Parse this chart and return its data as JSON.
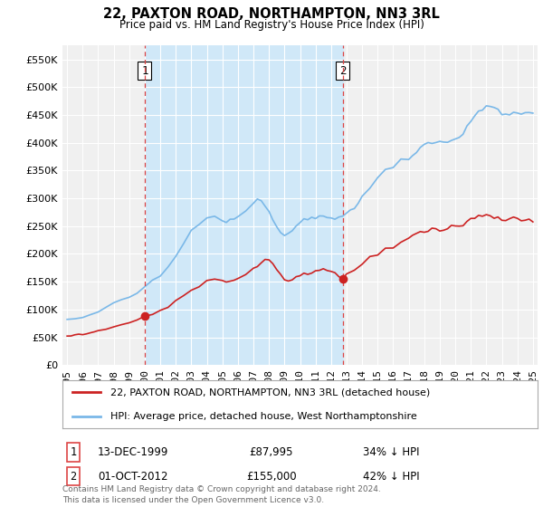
{
  "title": "22, PAXTON ROAD, NORTHAMPTON, NN3 3RL",
  "subtitle": "Price paid vs. HM Land Registry's House Price Index (HPI)",
  "legend_line1": "22, PAXTON ROAD, NORTHAMPTON, NN3 3RL (detached house)",
  "legend_line2": "HPI: Average price, detached house, West Northamptonshire",
  "purchase1_date_label": "13-DEC-1999",
  "purchase1_price": 87995,
  "purchase1_price_label": "£87,995",
  "purchase1_hpi_label": "34% ↓ HPI",
  "purchase2_date_label": "01-OCT-2012",
  "purchase2_price": 155000,
  "purchase2_price_label": "£155,000",
  "purchase2_hpi_label": "42% ↓ HPI",
  "footer": "Contains HM Land Registry data © Crown copyright and database right 2024.\nThis data is licensed under the Open Government Licence v3.0.",
  "hpi_color": "#7ab8e8",
  "price_color": "#cc2222",
  "vline_color": "#dd4444",
  "shade_color": "#d0e8f8",
  "background_color": "#ffffff",
  "plot_bg_color": "#f0f0f0",
  "ylim": [
    0,
    575000
  ],
  "yticks": [
    0,
    50000,
    100000,
    150000,
    200000,
    250000,
    300000,
    350000,
    400000,
    450000,
    500000,
    550000
  ],
  "purchase1_x": 2000.0,
  "purchase2_x": 2012.75,
  "xmin": 1994.7,
  "xmax": 2025.3
}
